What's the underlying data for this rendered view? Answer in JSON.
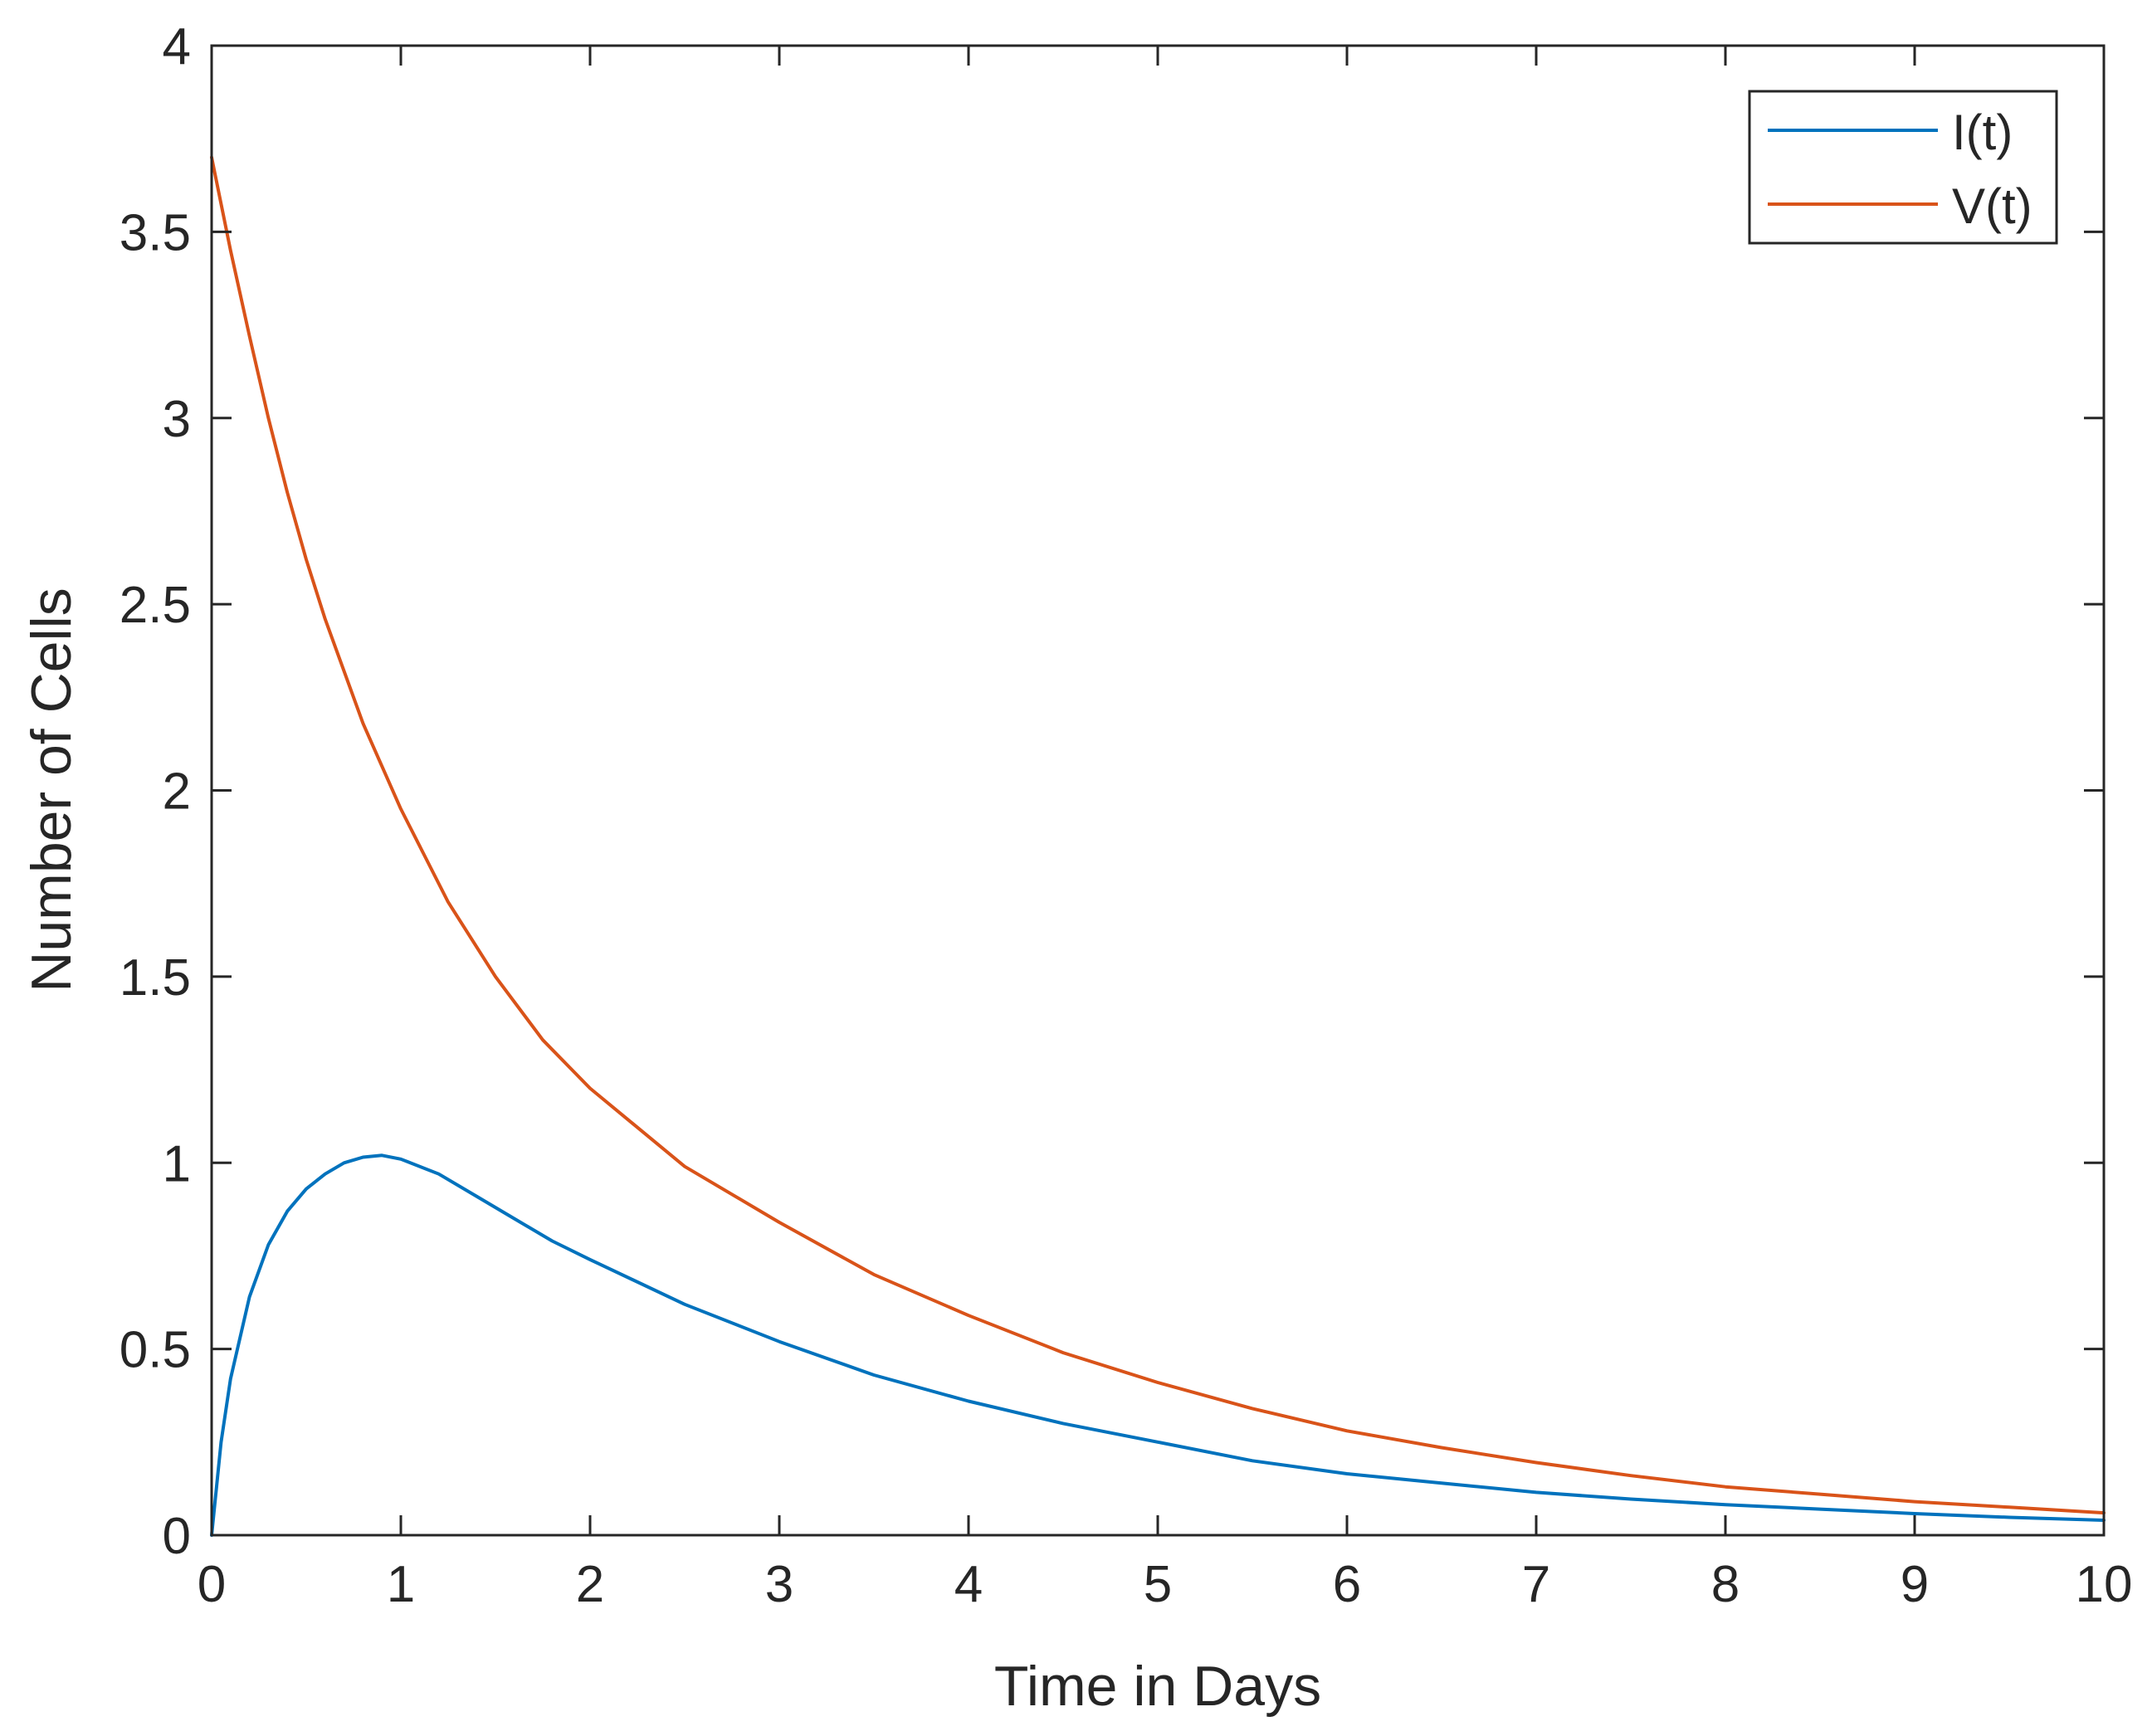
{
  "chart_data": {
    "type": "line",
    "xlabel": "Time in Days",
    "ylabel": "Number of Cells",
    "xlim": [
      0,
      10
    ],
    "ylim": [
      0,
      4
    ],
    "xticks": [
      0,
      1,
      2,
      3,
      4,
      5,
      6,
      7,
      8,
      9,
      10
    ],
    "yticks": [
      0,
      0.5,
      1,
      1.5,
      2,
      2.5,
      3,
      3.5,
      4
    ],
    "xtick_labels": [
      "0",
      "1",
      "2",
      "3",
      "4",
      "5",
      "6",
      "7",
      "8",
      "9",
      "10"
    ],
    "ytick_labels": [
      "0",
      "0.5",
      "1",
      "1.5",
      "2",
      "2.5",
      "3",
      "3.5",
      "4"
    ],
    "grid": false,
    "legend": "top-right",
    "series": [
      {
        "name": "I(t)",
        "color": "#0072BD",
        "x": [
          0,
          0.05,
          0.1,
          0.2,
          0.3,
          0.4,
          0.5,
          0.6,
          0.7,
          0.8,
          0.9,
          1.0,
          1.2,
          1.4,
          1.6,
          1.8,
          2.0,
          2.5,
          3.0,
          3.5,
          4.0,
          4.5,
          5.0,
          5.5,
          6.0,
          6.5,
          7.0,
          7.5,
          8.0,
          8.5,
          9.0,
          9.5,
          10.0
        ],
        "y": [
          0,
          0.25,
          0.42,
          0.64,
          0.78,
          0.87,
          0.93,
          0.97,
          1.0,
          1.015,
          1.02,
          1.01,
          0.97,
          0.91,
          0.85,
          0.79,
          0.74,
          0.62,
          0.52,
          0.43,
          0.36,
          0.3,
          0.25,
          0.2,
          0.165,
          0.14,
          0.115,
          0.097,
          0.082,
          0.07,
          0.058,
          0.048,
          0.04
        ]
      },
      {
        "name": "V(t)",
        "color": "#D95319",
        "x": [
          0,
          0.1,
          0.2,
          0.3,
          0.4,
          0.5,
          0.6,
          0.8,
          1.0,
          1.25,
          1.5,
          1.75,
          2.0,
          2.5,
          3.0,
          3.5,
          4.0,
          4.5,
          5.0,
          5.5,
          6.0,
          6.5,
          7.0,
          7.5,
          8.0,
          8.5,
          9.0,
          9.5,
          10.0
        ],
        "y": [
          3.7,
          3.45,
          3.22,
          3.0,
          2.8,
          2.62,
          2.46,
          2.18,
          1.95,
          1.7,
          1.5,
          1.33,
          1.2,
          0.99,
          0.84,
          0.7,
          0.59,
          0.49,
          0.41,
          0.34,
          0.28,
          0.235,
          0.195,
          0.16,
          0.13,
          0.11,
          0.09,
          0.075,
          0.06
        ]
      }
    ]
  }
}
